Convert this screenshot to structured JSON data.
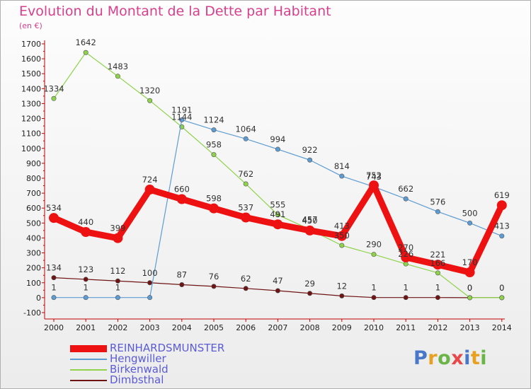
{
  "header": {
    "title": "Evolution du Montant de la Dette par Habitant",
    "unit": "(en €)"
  },
  "logo": {
    "text": "Proxiti"
  },
  "chart_data": {
    "type": "line",
    "title": "Evolution du Montant de la Dette par Habitant",
    "ylabel": "(en €)",
    "ylim": [
      -100,
      1700
    ],
    "grid": false,
    "legend_position": "bottom-left",
    "x": [
      "2000",
      "2001",
      "2002",
      "2003",
      "2004",
      "2005",
      "2006",
      "2007",
      "2008",
      "2009",
      "2010",
      "2011",
      "2012",
      "2013",
      "2014"
    ],
    "yticks": [
      -100,
      0,
      100,
      200,
      300,
      400,
      500,
      600,
      700,
      800,
      900,
      1000,
      1100,
      1200,
      1300,
      1400,
      1500,
      1600,
      1700
    ],
    "series": [
      {
        "name": "Dimbsthal",
        "color": "#6e1414",
        "values": [
          134,
          123,
          112,
          100,
          87,
          76,
          62,
          47,
          29,
          12,
          1,
          1,
          1,
          0,
          0
        ],
        "labels": [
          "134",
          "123",
          "112",
          "100",
          "87",
          "76",
          "62",
          "47",
          "29",
          "12",
          "1",
          "1",
          "1",
          "0",
          "0"
        ]
      },
      {
        "name": "Birkenwald",
        "color": "#8ed34a",
        "values": [
          1334,
          1642,
          1483,
          1320,
          1144,
          958,
          762,
          555,
          457,
          350,
          290,
          226,
          166,
          0,
          0
        ],
        "labels": [
          "1334",
          "1642",
          "1483",
          "1320",
          "1144",
          "958",
          "762",
          "555",
          "457",
          "350",
          "290",
          "226",
          "166",
          "0",
          "0"
        ]
      },
      {
        "name": "Hengwiller",
        "color": "#5d9cd3",
        "values": [
          1,
          1,
          1,
          1,
          1191,
          1124,
          1064,
          994,
          922,
          814,
          743,
          662,
          576,
          500,
          413
        ],
        "labels": [
          "1",
          "1",
          "1",
          "",
          "1191",
          "1124",
          "1064",
          "994",
          "922",
          "814",
          "743",
          "662",
          "576",
          "500",
          "413"
        ]
      },
      {
        "name": "REINHARDSMUNSTER",
        "color": "#ee1111",
        "values": [
          534,
          440,
          399,
          724,
          660,
          598,
          537,
          491,
          450,
          413,
          752,
          270,
          221,
          170,
          619
        ],
        "labels": [
          "534",
          "440",
          "399",
          "724",
          "660",
          "598",
          "537",
          "491",
          "450",
          "413",
          "752",
          "270",
          "221",
          "170",
          "619"
        ]
      }
    ]
  }
}
